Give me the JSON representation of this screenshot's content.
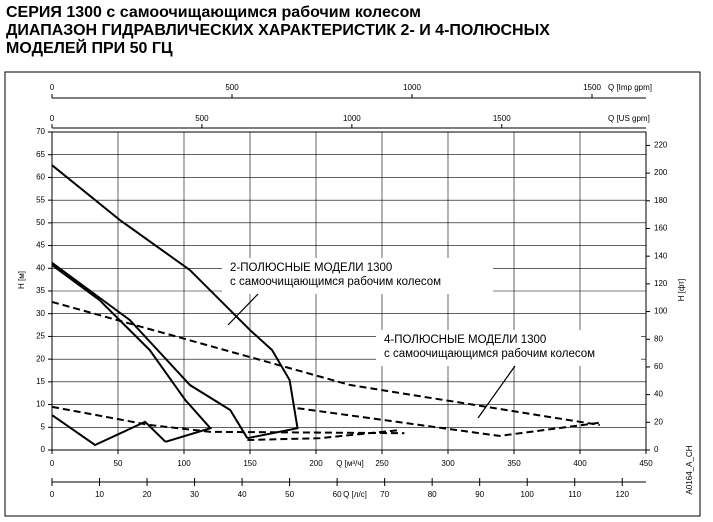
{
  "chart_data": {
    "type": "line",
    "title": [
      "СЕРИЯ 1300 с самоочищающимся рабочим колесом",
      "ДИАПАЗОН ГИДРАВЛИЧЕСКИХ ХАРАКТЕРИСТИК 2- И 4-ПОЛЮСНЫХ",
      "МОДЕЛЕЙ ПРИ 50 ГЦ"
    ],
    "xlabel": "Q [м³/ч]",
    "ylabel": "H [м]",
    "y2label": "H [фт]",
    "code": "A0164_A_CH",
    "xlim": [
      0,
      450
    ],
    "xticks": [
      0,
      50,
      100,
      150,
      200,
      250,
      300,
      350,
      400,
      450
    ],
    "ylim": [
      0,
      70
    ],
    "yticks": [
      0,
      5,
      10,
      15,
      20,
      25,
      30,
      35,
      40,
      45,
      50,
      55,
      60,
      65,
      70
    ],
    "y2lim": [
      0,
      229.7
    ],
    "y2ticks": [
      0,
      20,
      40,
      60,
      80,
      100,
      120,
      140,
      160,
      180,
      200,
      220
    ],
    "grid": true,
    "extra_x_axes": [
      {
        "label": "Q [л/с]",
        "lim": [
          0,
          125
        ],
        "ticks": [
          0,
          10,
          20,
          30,
          40,
          50,
          60,
          70,
          80,
          90,
          100,
          110,
          120
        ],
        "position": "bottom"
      },
      {
        "label": "Q [US gpm]",
        "lim": [
          0,
          1981
        ],
        "ticks": [
          0,
          500,
          1000,
          1500
        ],
        "position": "top"
      },
      {
        "label": "Q [Imp gpm]",
        "lim": [
          0,
          1650
        ],
        "ticks": [
          0,
          500,
          1000,
          1500
        ],
        "position": "top"
      }
    ],
    "series": [
      {
        "color": "#000",
        "style": "solid",
        "x": [
          0,
          51.5,
          104.5,
          150,
          166.7,
          180,
          186,
          148
        ],
        "values": [
          62.7,
          50.6,
          39.6,
          26.4,
          22,
          15.4,
          4.8,
          2.6
        ]
      },
      {
        "color": "#000",
        "style": "solid",
        "x": [
          0,
          59,
          104.5,
          135,
          148
        ],
        "values": [
          41.2,
          28.6,
          14.3,
          8.8,
          2.6
        ]
      },
      {
        "color": "#000",
        "style": "solid",
        "x": [
          0,
          36,
          74,
          101,
          120,
          86
        ],
        "values": [
          40.7,
          33,
          22,
          11,
          4.8,
          1.8
        ]
      },
      {
        "color": "#000",
        "style": "solid",
        "x": [
          0,
          32.6,
          70.5,
          86
        ],
        "values": [
          7.7,
          1.1,
          6.2,
          1.8
        ]
      },
      {
        "color": "#000",
        "style": "dashed",
        "x": [
          0,
          226,
          415
        ],
        "values": [
          32.6,
          14.3,
          5.5
        ]
      },
      {
        "color": "#000",
        "style": "dashed",
        "x": [
          0,
          74,
          120,
          267
        ],
        "values": [
          9.5,
          5.5,
          4,
          3.7
        ]
      },
      {
        "color": "#000",
        "style": "dashed",
        "x": [
          186,
          339,
          415
        ],
        "values": [
          9.2,
          3.1,
          6
        ]
      },
      {
        "color": "#000",
        "style": "dashed",
        "x": [
          148,
          203,
          264
        ],
        "values": [
          2.2,
          2.6,
          4.4
        ]
      }
    ],
    "annotations": [
      {
        "lines": [
          "2-ПОЛЮСНЫЕ МОДЕЛИ 1300",
          "с самоочищающимся рабочим колесом"
        ]
      },
      {
        "lines": [
          "4-ПОЛЮСНЫЕ МОДЕЛИ 1300",
          "с самоочищающимся рабочим колесом"
        ]
      }
    ]
  }
}
